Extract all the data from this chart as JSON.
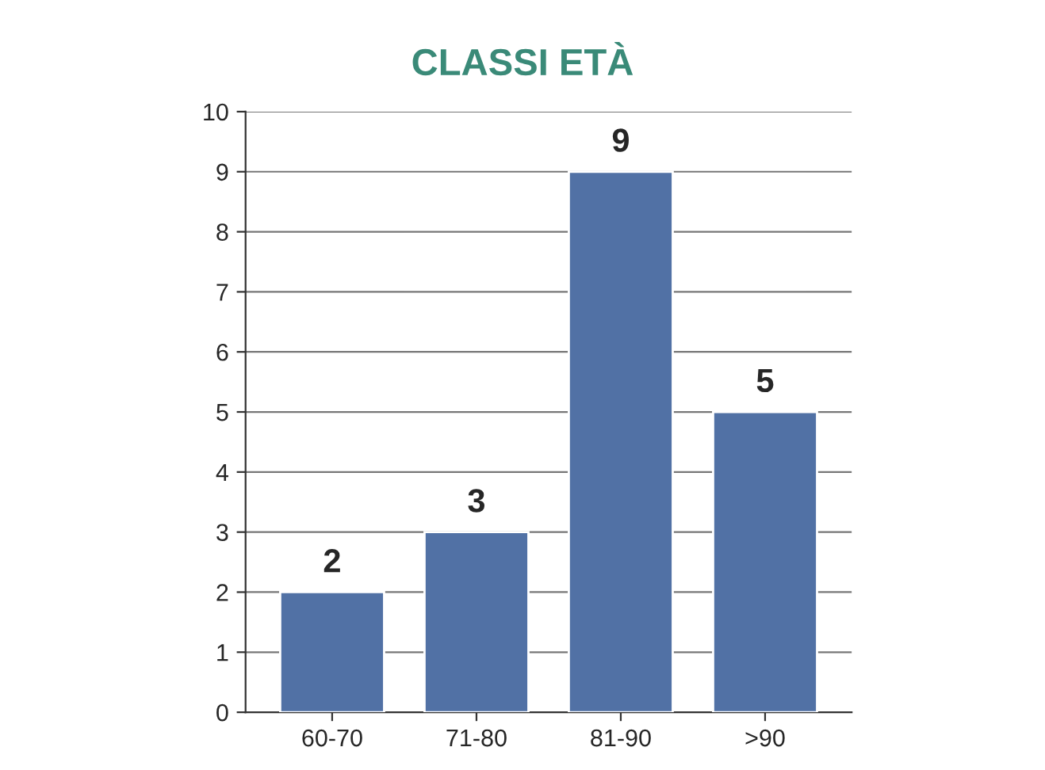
{
  "chart_data": {
    "type": "bar",
    "title": "CLASSI ETÀ",
    "categories": [
      "60-70",
      "71-80",
      "81-90",
      ">90"
    ],
    "values": [
      2,
      3,
      9,
      5
    ],
    "color": "#5171a5",
    "ylim": [
      0,
      10
    ],
    "yticks": [
      0,
      1,
      2,
      3,
      4,
      5,
      6,
      7,
      8,
      9,
      10
    ],
    "grid": "y",
    "data_labels": true
  }
}
